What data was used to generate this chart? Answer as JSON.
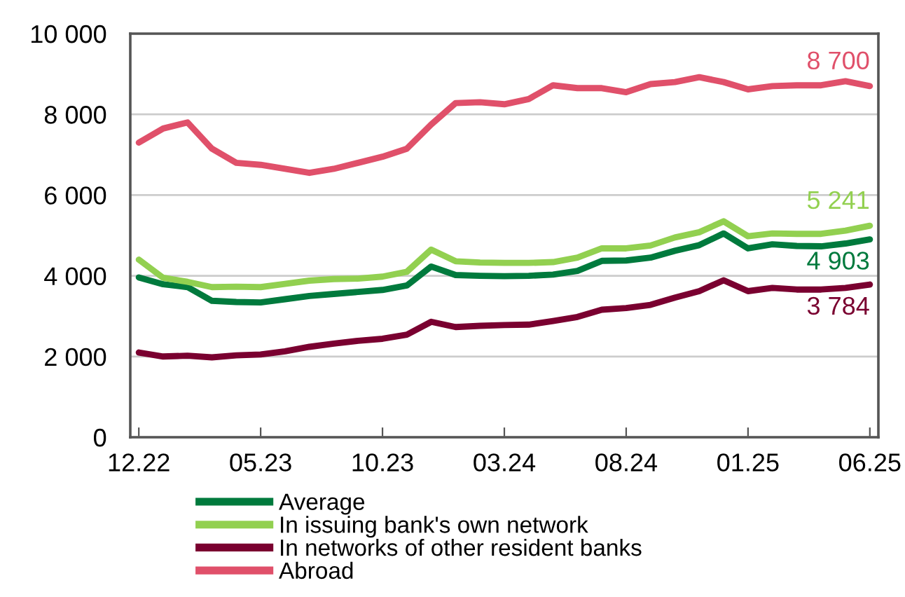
{
  "chart_data": {
    "type": "line",
    "categories": [
      "12.22",
      null,
      null,
      null,
      null,
      "05.23",
      null,
      null,
      null,
      null,
      "10.23",
      null,
      null,
      null,
      null,
      "03.24",
      null,
      null,
      null,
      null,
      "08.24",
      null,
      null,
      null,
      null,
      "01.25",
      null,
      null,
      null,
      null,
      "06.25"
    ],
    "series": [
      {
        "name": "Average",
        "color": "#007a3d",
        "values": [
          3960,
          3790,
          3720,
          3380,
          3350,
          3340,
          3420,
          3500,
          3550,
          3600,
          3650,
          3760,
          4230,
          4020,
          4000,
          3990,
          4000,
          4030,
          4120,
          4370,
          4380,
          4450,
          4620,
          4760,
          5050,
          4680,
          4780,
          4740,
          4730,
          4800,
          4903
        ]
      },
      {
        "name": "In issuing bank's own network",
        "color": "#92d050",
        "values": [
          4400,
          3950,
          3850,
          3720,
          3730,
          3720,
          3800,
          3880,
          3920,
          3930,
          3980,
          4100,
          4650,
          4360,
          4330,
          4320,
          4320,
          4340,
          4450,
          4680,
          4680,
          4750,
          4950,
          5080,
          5350,
          4980,
          5050,
          5040,
          5040,
          5120,
          5241
        ]
      },
      {
        "name": "In networks of other resident banks",
        "color": "#7a0030",
        "values": [
          2100,
          2000,
          2020,
          1980,
          2030,
          2050,
          2130,
          2240,
          2320,
          2390,
          2440,
          2540,
          2860,
          2730,
          2760,
          2780,
          2790,
          2880,
          2980,
          3160,
          3200,
          3280,
          3460,
          3620,
          3890,
          3620,
          3700,
          3660,
          3660,
          3700,
          3784
        ]
      },
      {
        "name": "Abroad",
        "color": "#e0506a",
        "values": [
          7300,
          7650,
          7800,
          7150,
          6800,
          6750,
          6650,
          6550,
          6650,
          6800,
          6950,
          7150,
          7750,
          8280,
          8300,
          8250,
          8380,
          8720,
          8650,
          8650,
          8550,
          8750,
          8800,
          8920,
          8800,
          8620,
          8700,
          8720,
          8720,
          8820,
          8700
        ]
      }
    ],
    "ylim": [
      0,
      10000
    ],
    "yticks": [
      0,
      {
        "value": 2000,
        "label": "2 000"
      },
      {
        "value": 4000,
        "label": "4 000"
      },
      {
        "value": 6000,
        "label": "6 000"
      },
      {
        "value": 8000,
        "label": "8 000"
      },
      {
        "value": 10000,
        "label": "10 000"
      }
    ],
    "annotations": [
      {
        "text": "8 700",
        "x": "06.25",
        "y": 8700
      },
      {
        "text": "5 241",
        "x": "06.25",
        "y": 5241
      },
      {
        "text": "4 903",
        "x": "06.25",
        "y": 4903
      },
      {
        "text": "3 784",
        "x": "06.25",
        "y": 3784
      }
    ],
    "grid": "y",
    "legend": "bottom",
    "marker": "none",
    "line_style": "solid"
  }
}
